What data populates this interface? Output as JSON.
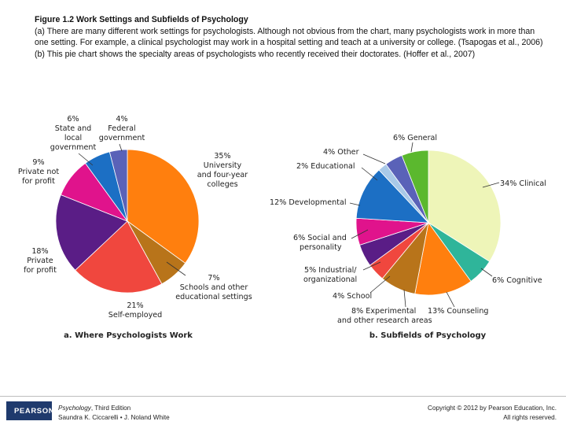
{
  "caption": {
    "title": "Figure 1.2   Work Settings and Subfields of Psychology",
    "body": "(a) There are many different work settings for psychologists. Although not obvious from the chart, many psychologists work in more than one setting. For example, a clinical psychologist may work in a hospital setting and teach at a university or college. (Tsapogas et al., 2006) (b) This pie chart shows the specialty areas of psychologists who recently received their doctorates. (Hoffer et al., 2007)"
  },
  "chart_data": [
    {
      "type": "pie",
      "title": "a. Where Psychologists Work",
      "slices": [
        {
          "label": "35% University and four-year colleges",
          "value": 35,
          "color": "#ff7f0e"
        },
        {
          "label": "7% Schools and other educational settings",
          "value": 7,
          "color": "#b8741a"
        },
        {
          "label": "21% Self-employed",
          "value": 21,
          "color": "#f0473e"
        },
        {
          "label": "18% Private for profit",
          "value": 18,
          "color": "#5a1d86"
        },
        {
          "label": "9% Private not for profit",
          "value": 9,
          "color": "#e0138c"
        },
        {
          "label": "6% State and local government",
          "value": 6,
          "color": "#1c6fc4"
        },
        {
          "label": "4% Federal government",
          "value": 4,
          "color": "#5a62b8"
        }
      ]
    },
    {
      "type": "pie",
      "title": "b. Subfields of Psychology",
      "slices": [
        {
          "label": "34% Clinical",
          "value": 34,
          "color": "#eef5b8"
        },
        {
          "label": "6% Cognitive",
          "value": 6,
          "color": "#2fb59a"
        },
        {
          "label": "13% Counseling",
          "value": 13,
          "color": "#ff7f0e"
        },
        {
          "label": "8% Experimental and other research areas",
          "value": 8,
          "color": "#b8741a"
        },
        {
          "label": "4% School",
          "value": 4,
          "color": "#f0473e"
        },
        {
          "label": "5% Industrial/ organizational",
          "value": 5,
          "color": "#5a1d86"
        },
        {
          "label": "6% Social and personality",
          "value": 6,
          "color": "#e0138c"
        },
        {
          "label": "12% Developmental",
          "value": 12,
          "color": "#1c6fc4"
        },
        {
          "label": "2% Educational",
          "value": 2,
          "color": "#a9c9e8"
        },
        {
          "label": "4% Other",
          "value": 4,
          "color": "#5a62b8"
        },
        {
          "label": "6% General",
          "value": 6,
          "color": "#5bb82e"
        }
      ]
    }
  ],
  "labels_a": {
    "univ_1": "35%",
    "univ_2": "University",
    "univ_3": "and four-year",
    "univ_4": "colleges",
    "schools_1": "7%",
    "schools_2": "Schools and other",
    "schools_3": "educational settings",
    "self_1": "21%",
    "self_2": "Self-employed",
    "pfp_1": "18%",
    "pfp_2": "Private",
    "pfp_3": "for profit",
    "pnfp_1": "9%",
    "pnfp_2": "Private not",
    "pnfp_3": "for profit",
    "state_1": "6%",
    "state_2": "State and",
    "state_3": "local",
    "state_4": "government",
    "fed_1": "4%",
    "fed_2": "Federal",
    "fed_3": "government"
  },
  "labels_b": {
    "general": "6% General",
    "other": "4% Other",
    "educational": "2% Educational",
    "developmental": "12% Developmental",
    "social_1": "6% Social and",
    "social_2": "personality",
    "io_1": "5% Industrial/",
    "io_2": "organizational",
    "school": "4% School",
    "exp_1": "8% Experimental",
    "exp_2": "and other research areas",
    "counseling": "13% Counseling",
    "cognitive": "6% Cognitive",
    "clinical": "34% Clinical"
  },
  "footer": {
    "logo": "PEARSON",
    "book_title": "Psychology",
    "book_edition": ", Third Edition",
    "authors": "Saundra K. Ciccarelli • J. Noland White",
    "copyright_1": "Copyright © 2012 by Pearson Education, Inc.",
    "copyright_2": "All rights reserved."
  }
}
